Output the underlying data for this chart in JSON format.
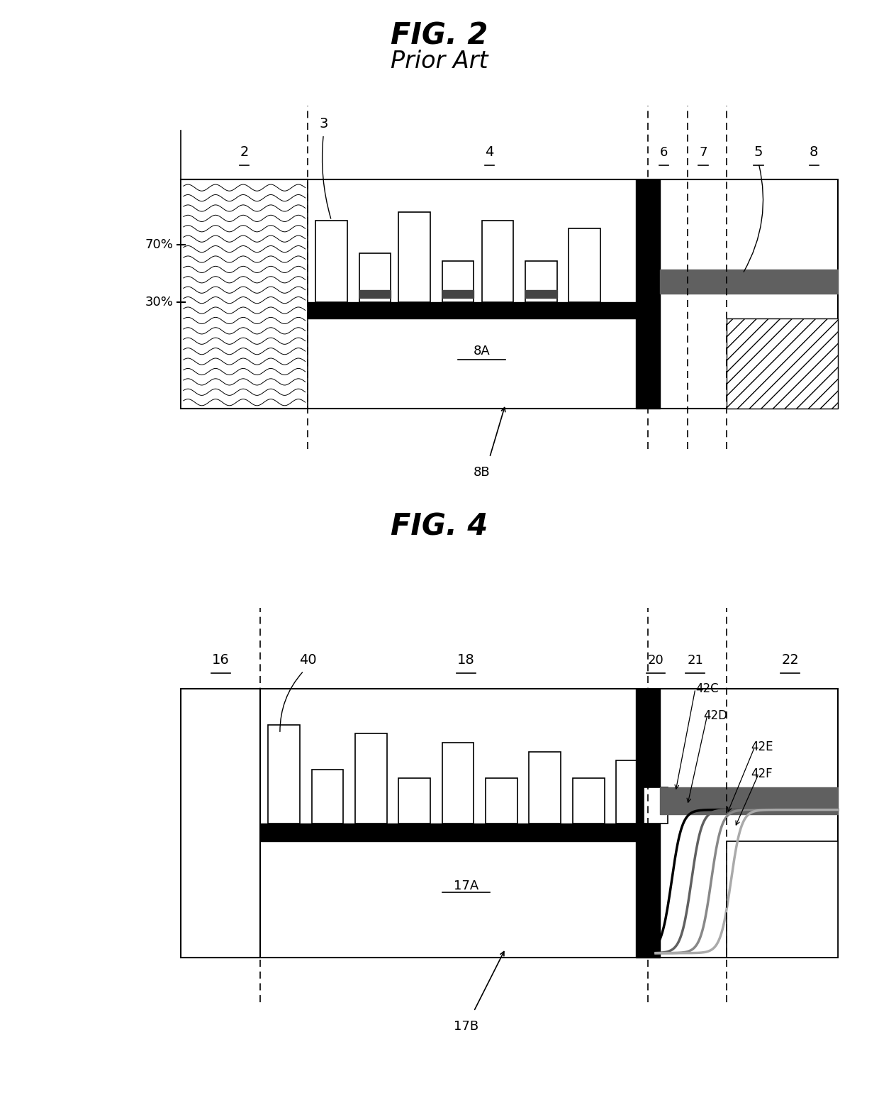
{
  "fig2_title": "FIG. 2",
  "fig2_subtitle": "Prior Art",
  "fig4_title": "FIG. 4",
  "bg_color": "#ffffff",
  "label_2": "2",
  "label_3": "3",
  "label_4": "4",
  "label_5": "5",
  "label_6": "6",
  "label_7": "7",
  "label_8": "8",
  "label_8A": "8A",
  "label_8B": "8B",
  "label_16": "16",
  "label_18": "18",
  "label_20": "20",
  "label_21": "21",
  "label_22": "22",
  "label_40": "40",
  "label_17A": "17A",
  "label_17B": "17B",
  "label_42C": "42C",
  "label_42D": "42D",
  "label_42E": "42E",
  "label_42F": "42F",
  "dark_gray": "#606060",
  "med_gray": "#888888",
  "light_gray": "#aaaaaa"
}
